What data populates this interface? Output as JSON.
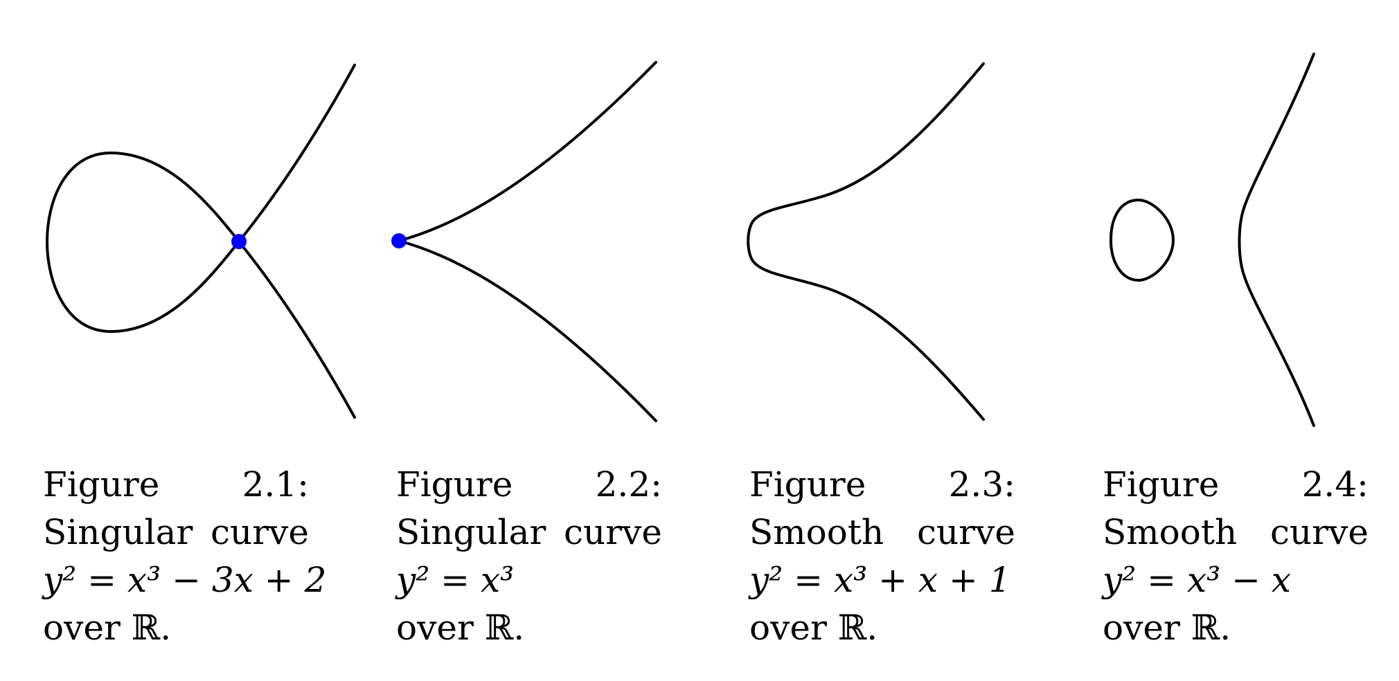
{
  "figures": [
    {
      "number": "2.1:",
      "word": "Figure",
      "desc_first": "Singular",
      "desc_second": "curve",
      "equation": "y² = x³ − 3x + 2",
      "over": "over ℝ.",
      "singular_point_color": "#0000ff"
    },
    {
      "number": "2.2:",
      "word": "Figure",
      "desc_first": "Singular",
      "desc_second": "curve",
      "equation": "y² = x³",
      "over": "over ℝ.",
      "singular_point_color": "#0000ff"
    },
    {
      "number": "2.3:",
      "word": "Figure",
      "desc_first": "Smooth",
      "desc_second": "curve",
      "equation": "y² = x³ + x + 1",
      "over": "over ℝ."
    },
    {
      "number": "2.4:",
      "word": "Figure",
      "desc_first": "Smooth",
      "desc_second": "curve",
      "equation": "y² = x³ − x",
      "over": "over ℝ."
    }
  ]
}
